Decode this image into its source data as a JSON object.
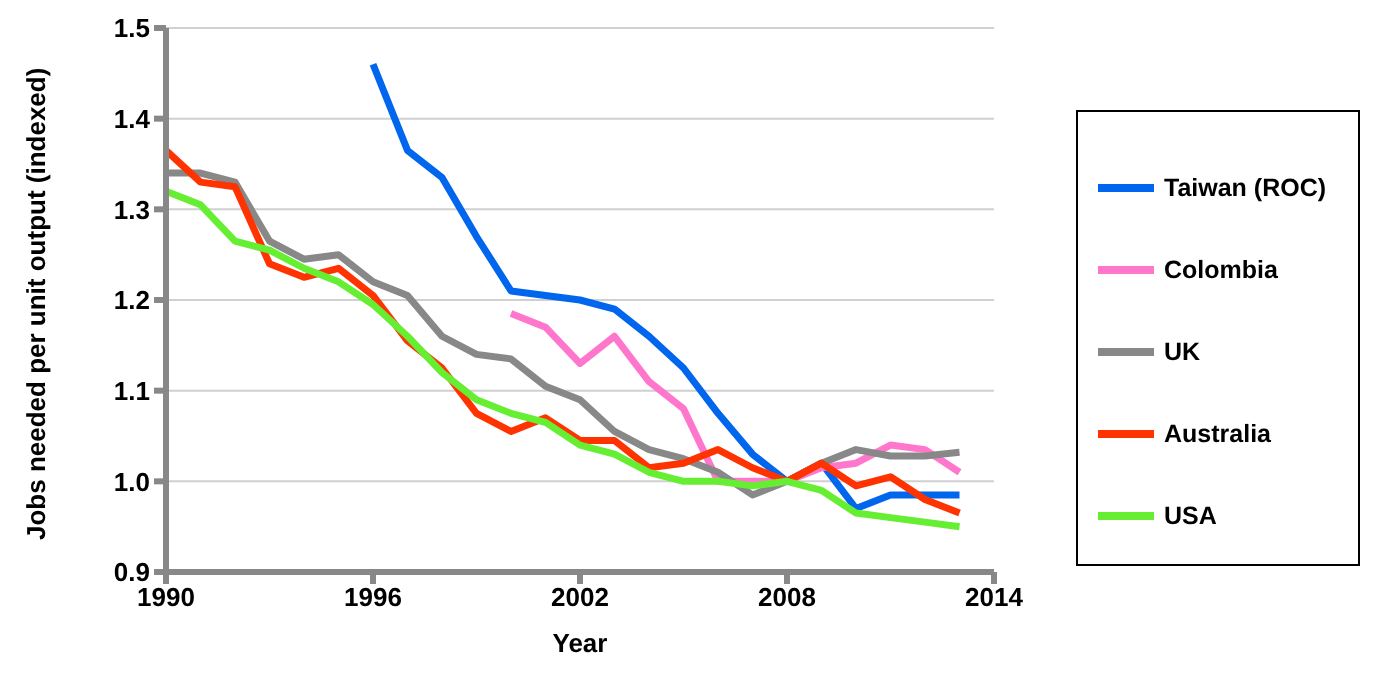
{
  "chart_data": {
    "type": "line",
    "xlabel": "Year",
    "ylabel": "Jobs needed per unit output (indexed)",
    "x": [
      1990,
      1991,
      1992,
      1993,
      1994,
      1995,
      1996,
      1997,
      1998,
      1999,
      2000,
      2001,
      2002,
      2003,
      2004,
      2005,
      2006,
      2007,
      2008,
      2009,
      2010,
      2011,
      2012,
      2013
    ],
    "series": [
      {
        "name": "Taiwan (ROC)",
        "color": "#0066ee",
        "values": [
          null,
          null,
          null,
          null,
          null,
          null,
          1.46,
          1.365,
          1.335,
          1.27,
          1.21,
          1.205,
          1.2,
          1.19,
          1.16,
          1.125,
          1.075,
          1.03,
          1.0,
          1.02,
          0.97,
          0.985,
          0.985,
          0.985
        ]
      },
      {
        "name": "Colombia",
        "color": "#ff77cc",
        "values": [
          null,
          null,
          null,
          null,
          null,
          null,
          null,
          null,
          null,
          null,
          1.185,
          1.17,
          1.13,
          1.16,
          1.11,
          1.08,
          1.0,
          1.0,
          1.0,
          1.015,
          1.02,
          1.04,
          1.035,
          1.01
        ]
      },
      {
        "name": "UK",
        "color": "#888888",
        "values": [
          1.34,
          1.34,
          1.33,
          1.265,
          1.245,
          1.25,
          1.22,
          1.205,
          1.16,
          1.14,
          1.135,
          1.105,
          1.09,
          1.055,
          1.035,
          1.025,
          1.01,
          0.985,
          1.0,
          1.02,
          1.035,
          1.028,
          1.028,
          1.032
        ]
      },
      {
        "name": "Australia",
        "color": "#ff3300",
        "values": [
          1.365,
          1.33,
          1.325,
          1.24,
          1.225,
          1.235,
          1.205,
          1.155,
          1.125,
          1.075,
          1.055,
          1.07,
          1.045,
          1.045,
          1.015,
          1.02,
          1.035,
          1.015,
          1.0,
          1.02,
          0.995,
          1.005,
          0.98,
          0.965
        ]
      },
      {
        "name": "USA",
        "color": "#66ee33",
        "values": [
          1.32,
          1.305,
          1.265,
          1.255,
          1.235,
          1.22,
          1.195,
          1.16,
          1.12,
          1.09,
          1.075,
          1.065,
          1.04,
          1.03,
          1.01,
          1.0,
          1.0,
          0.995,
          1.0,
          0.99,
          0.965,
          0.96,
          0.955,
          0.95
        ]
      }
    ],
    "xlim": [
      1990,
      2014
    ],
    "xticks": [
      1990,
      1996,
      2002,
      2008,
      2014
    ],
    "ylim": [
      0.9,
      1.5
    ],
    "yticks": [
      {
        "value": 0.9,
        "label": "0.9"
      },
      {
        "value": 1.0,
        "label": "1.0"
      },
      {
        "value": 1.1,
        "label": "1.1"
      },
      {
        "value": 1.2,
        "label": "1.2"
      },
      {
        "value": 1.3,
        "label": "1.3"
      },
      {
        "value": 1.4,
        "label": "1.4"
      },
      {
        "value": 1.5,
        "label": "1.5"
      }
    ],
    "grid": "y",
    "legend": "right",
    "marker": "none",
    "line_style": "solid"
  }
}
